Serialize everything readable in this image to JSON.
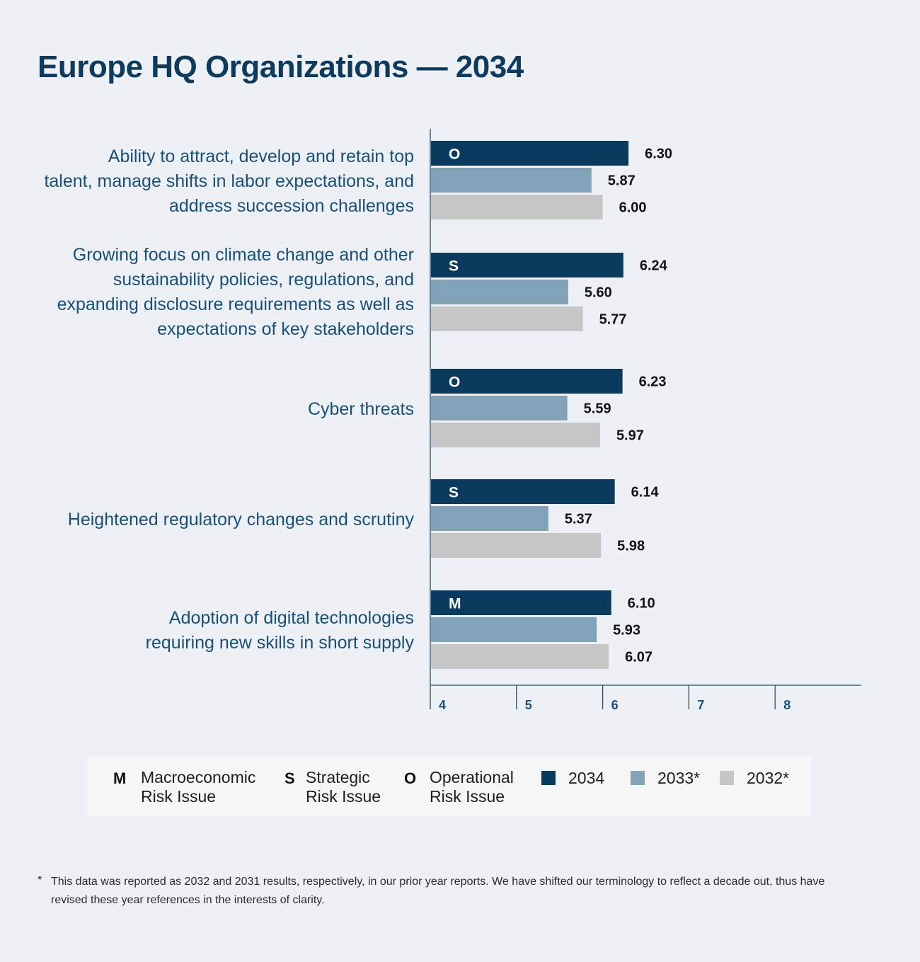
{
  "title": "Europe HQ Organizations — 2034",
  "colors": {
    "y2034": "#0b3a5f",
    "y2033": "#82a2b7",
    "y2032": "#c6c6c6",
    "axis": "#1a4f78"
  },
  "chart_data": {
    "type": "bar",
    "orientation": "horizontal",
    "title": "Europe HQ Organizations — 2034",
    "categories": [
      "Ability to attract, develop and retain top talent, manage shifts in labor expectations, and address succession challenges",
      "Growing focus on climate change and other sustainability policies, regulations, and expanding disclosure requirements as well as expectations of key stakeholders",
      "Cyber threats",
      "Heightened regulatory changes and scrutiny",
      "Adoption of digital technologies requiring new skills in short supply"
    ],
    "category_lines": [
      [
        "Ability to attract, develop and retain top",
        "talent, manage shifts in labor expectations, and",
        "address succession challenges"
      ],
      [
        "Growing focus on climate change and other",
        "sustainability policies, regulations, and",
        "expanding disclosure requirements as well as",
        "expectations of key stakeholders"
      ],
      [
        "Cyber threats"
      ],
      [
        "Heightened regulatory changes and scrutiny"
      ],
      [
        "Adoption of digital technologies",
        "requiring new skills in short supply"
      ]
    ],
    "risk_type": [
      "O",
      "S",
      "O",
      "S",
      "M"
    ],
    "series": [
      {
        "name": "2034",
        "values": [
          6.3,
          6.24,
          6.23,
          6.14,
          6.1
        ],
        "labels": [
          "6.30",
          "6.24",
          "6.23",
          "6.14",
          "6.10"
        ]
      },
      {
        "name": "2033*",
        "values": [
          5.87,
          5.6,
          5.59,
          5.37,
          5.93
        ],
        "labels": [
          "5.87",
          "5.60",
          "5.59",
          "5.37",
          "5.93"
        ]
      },
      {
        "name": "2032*",
        "values": [
          6.0,
          5.77,
          5.97,
          5.98,
          6.07
        ],
        "labels": [
          "6.00",
          "5.77",
          "5.97",
          "5.98",
          "6.07"
        ]
      }
    ],
    "xlim": [
      4,
      9
    ],
    "xticks": [
      "4",
      "5",
      "6",
      "7",
      "8"
    ],
    "grid": false,
    "legend_position": "bottom"
  },
  "legend": {
    "types": [
      {
        "letter": "M",
        "line1": "Macroeconomic",
        "line2": "Risk Issue"
      },
      {
        "letter": "S",
        "line1": "Strategic",
        "line2": "Risk Issue"
      },
      {
        "letter": "O",
        "line1": "Operational",
        "line2": "Risk Issue"
      }
    ],
    "years": [
      "2034",
      "2033*",
      "2032*"
    ]
  },
  "footnote": {
    "marker": "*",
    "text": "This data was reported as 2032 and 2031 results, respectively, in our prior year reports. We have shifted our terminology to reflect a decade out, thus have revised these year references in the interests of clarity."
  }
}
